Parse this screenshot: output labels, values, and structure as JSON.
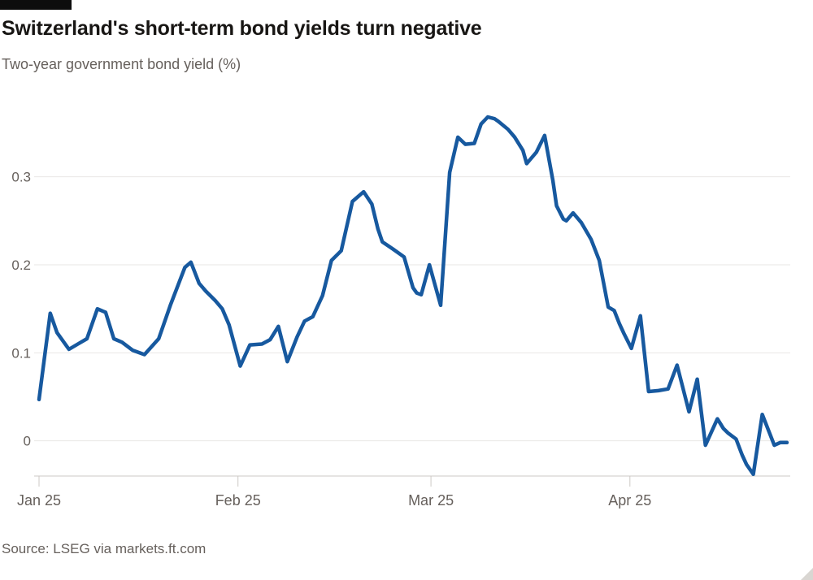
{
  "chart_data": {
    "type": "line",
    "title": "Switzerland's short-term bond yields turn negative",
    "subtitle": "Two-year government bond yield (%)",
    "source": "Source: LSEG via markets.ft.com",
    "line_color": "#17599f",
    "grid_color": "#e9e7e4",
    "axis_color": "#cdc9c5",
    "label_color": "#66605c",
    "x_axis": {
      "span": "Jan 2025 to early May 2025, daily",
      "ticks": [
        {
          "f": 0.0,
          "label": "Jan 25"
        },
        {
          "f": 0.266,
          "label": "Feb 25"
        },
        {
          "f": 0.524,
          "label": "Mar 25"
        },
        {
          "f": 0.79,
          "label": "Apr 25"
        }
      ]
    },
    "y_axis": {
      "ylim": [
        -0.04,
        0.38
      ],
      "ticks": [
        0,
        0.1,
        0.2,
        0.3
      ],
      "tick_labels": [
        "0",
        "0.1",
        "0.2",
        "0.3"
      ]
    },
    "series": [
      {
        "name": "Two-year government bond yield (%)",
        "points": [
          [
            0.0,
            0.047
          ],
          [
            0.015,
            0.145
          ],
          [
            0.024,
            0.123
          ],
          [
            0.04,
            0.104
          ],
          [
            0.052,
            0.11
          ],
          [
            0.064,
            0.116
          ],
          [
            0.078,
            0.15
          ],
          [
            0.089,
            0.146
          ],
          [
            0.1,
            0.116
          ],
          [
            0.111,
            0.112
          ],
          [
            0.125,
            0.103
          ],
          [
            0.141,
            0.098
          ],
          [
            0.16,
            0.116
          ],
          [
            0.176,
            0.155
          ],
          [
            0.195,
            0.197
          ],
          [
            0.203,
            0.203
          ],
          [
            0.214,
            0.179
          ],
          [
            0.223,
            0.17
          ],
          [
            0.236,
            0.159
          ],
          [
            0.245,
            0.15
          ],
          [
            0.254,
            0.132
          ],
          [
            0.269,
            0.085
          ],
          [
            0.282,
            0.109
          ],
          [
            0.298,
            0.11
          ],
          [
            0.309,
            0.115
          ],
          [
            0.32,
            0.13
          ],
          [
            0.332,
            0.09
          ],
          [
            0.345,
            0.118
          ],
          [
            0.355,
            0.136
          ],
          [
            0.366,
            0.141
          ],
          [
            0.379,
            0.165
          ],
          [
            0.391,
            0.205
          ],
          [
            0.404,
            0.216
          ],
          [
            0.419,
            0.272
          ],
          [
            0.434,
            0.283
          ],
          [
            0.445,
            0.269
          ],
          [
            0.453,
            0.241
          ],
          [
            0.459,
            0.226
          ],
          [
            0.473,
            0.218
          ],
          [
            0.488,
            0.209
          ],
          [
            0.5,
            0.174
          ],
          [
            0.505,
            0.168
          ],
          [
            0.511,
            0.166
          ],
          [
            0.522,
            0.2
          ],
          [
            0.537,
            0.154
          ],
          [
            0.549,
            0.305
          ],
          [
            0.56,
            0.345
          ],
          [
            0.57,
            0.337
          ],
          [
            0.582,
            0.338
          ],
          [
            0.591,
            0.36
          ],
          [
            0.6,
            0.368
          ],
          [
            0.609,
            0.366
          ],
          [
            0.614,
            0.363
          ],
          [
            0.627,
            0.354
          ],
          [
            0.636,
            0.345
          ],
          [
            0.647,
            0.33
          ],
          [
            0.652,
            0.315
          ],
          [
            0.665,
            0.328
          ],
          [
            0.676,
            0.347
          ],
          [
            0.687,
            0.296
          ],
          [
            0.692,
            0.267
          ],
          [
            0.701,
            0.252
          ],
          [
            0.705,
            0.25
          ],
          [
            0.714,
            0.259
          ],
          [
            0.725,
            0.248
          ],
          [
            0.738,
            0.229
          ],
          [
            0.749,
            0.205
          ],
          [
            0.761,
            0.152
          ],
          [
            0.769,
            0.148
          ],
          [
            0.776,
            0.133
          ],
          [
            0.782,
            0.122
          ],
          [
            0.792,
            0.105
          ],
          [
            0.804,
            0.142
          ],
          [
            0.815,
            0.056
          ],
          [
            0.828,
            0.057
          ],
          [
            0.841,
            0.059
          ],
          [
            0.853,
            0.086
          ],
          [
            0.869,
            0.033
          ],
          [
            0.88,
            0.07
          ],
          [
            0.891,
            -0.005
          ],
          [
            0.907,
            0.025
          ],
          [
            0.915,
            0.014
          ],
          [
            0.921,
            0.009
          ],
          [
            0.932,
            0.002
          ],
          [
            0.94,
            -0.016
          ],
          [
            0.946,
            -0.027
          ],
          [
            0.955,
            -0.038
          ],
          [
            0.967,
            0.03
          ],
          [
            0.983,
            -0.005
          ],
          [
            0.991,
            -0.002
          ],
          [
            1.0,
            -0.002
          ]
        ]
      }
    ]
  }
}
